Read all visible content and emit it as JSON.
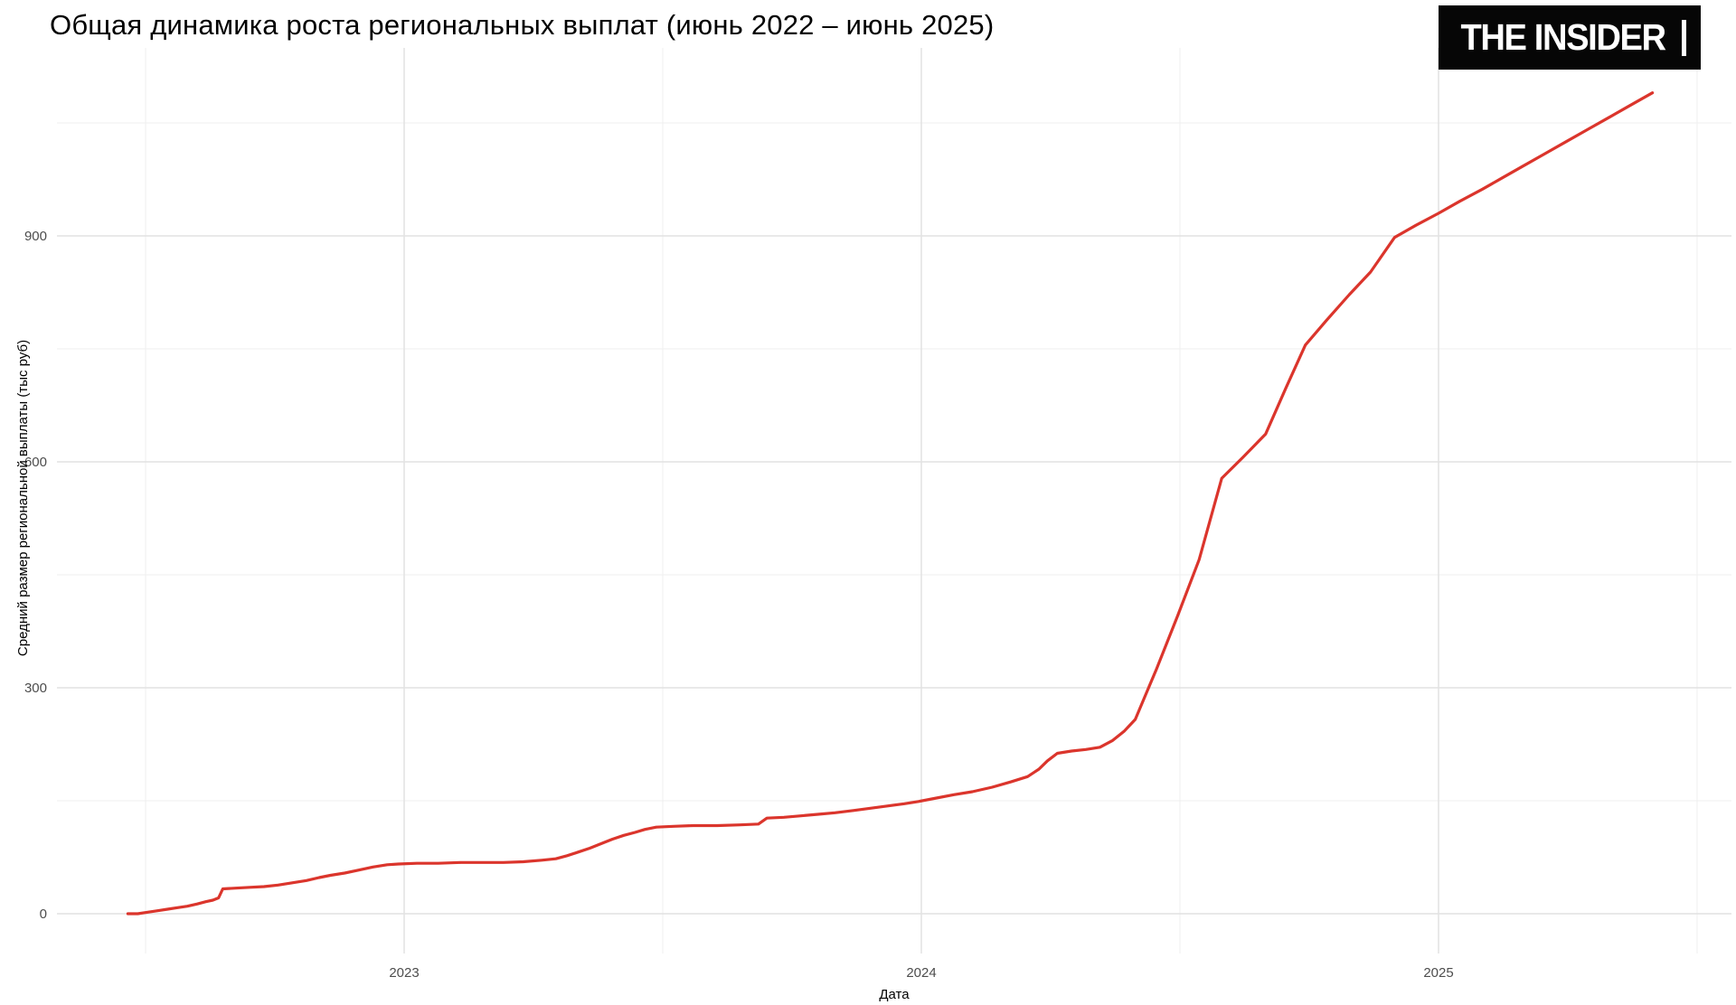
{
  "page": {
    "title": "Общая динамика роста региональных выплат (июнь 2022 – июнь 2025)"
  },
  "logo": {
    "text": "THE INSIDER",
    "bg": "#060606",
    "fg": "#ffffff"
  },
  "chart_data": {
    "type": "line",
    "title": "Общая динамика роста региональных выплат (июнь 2022 – июнь 2025)",
    "xlabel": "Дата",
    "ylabel": "Средний размер региональной выплаты (тыс руб)",
    "x_ticks": [
      {
        "label": "2023",
        "year": 2023
      },
      {
        "label": "2024",
        "year": 2024
      },
      {
        "label": "2025",
        "year": 2025
      }
    ],
    "x_minor_years": [
      2022.5,
      2023.5,
      2024.5,
      2025.5
    ],
    "y_ticks": [
      0,
      300,
      600,
      900
    ],
    "y_minor_ticks": [
      150,
      450,
      750,
      1050
    ],
    "ylim": [
      0,
      1147
    ],
    "xlim_years": [
      2022.3,
      2025.57
    ],
    "grid": "major-and-minor, light gray on white",
    "legend": "none",
    "line_color": "#db352c",
    "grid_major_color": "#e2e2e2",
    "grid_minor_color": "#efefef",
    "tick_text_color": "#4d4d4d",
    "axis_title_color": "#000000",
    "series": [
      {
        "name": "Средний размер региональной выплаты",
        "unit": "тыс руб",
        "points": [
          [
            "2022-06-20",
            0
          ],
          [
            "2022-06-27",
            0
          ],
          [
            "2022-07-04",
            2
          ],
          [
            "2022-07-11",
            4
          ],
          [
            "2022-07-18",
            6
          ],
          [
            "2022-07-25",
            8
          ],
          [
            "2022-08-01",
            10
          ],
          [
            "2022-08-08",
            13
          ],
          [
            "2022-08-14",
            16
          ],
          [
            "2022-08-19",
            18
          ],
          [
            "2022-08-23",
            21
          ],
          [
            "2022-08-26",
            33
          ],
          [
            "2022-09-04",
            34
          ],
          [
            "2022-09-14",
            35
          ],
          [
            "2022-09-24",
            36
          ],
          [
            "2022-10-04",
            38
          ],
          [
            "2022-10-14",
            41
          ],
          [
            "2022-10-24",
            44
          ],
          [
            "2022-11-02",
            48
          ],
          [
            "2022-11-10",
            51
          ],
          [
            "2022-11-20",
            54
          ],
          [
            "2022-11-30",
            58
          ],
          [
            "2022-12-10",
            62
          ],
          [
            "2022-12-20",
            65
          ],
          [
            "2022-12-28",
            66
          ],
          [
            "2023-01-10",
            67
          ],
          [
            "2023-01-25",
            67
          ],
          [
            "2023-02-10",
            68
          ],
          [
            "2023-02-25",
            68
          ],
          [
            "2023-03-12",
            68
          ],
          [
            "2023-03-26",
            69
          ],
          [
            "2023-04-08",
            71
          ],
          [
            "2023-04-18",
            73
          ],
          [
            "2023-04-26",
            77
          ],
          [
            "2023-05-04",
            82
          ],
          [
            "2023-05-12",
            87
          ],
          [
            "2023-05-20",
            93
          ],
          [
            "2023-05-28",
            99
          ],
          [
            "2023-06-05",
            104
          ],
          [
            "2023-06-13",
            108
          ],
          [
            "2023-06-20",
            112
          ],
          [
            "2023-06-28",
            115
          ],
          [
            "2023-07-10",
            116
          ],
          [
            "2023-07-24",
            117
          ],
          [
            "2023-08-10",
            117
          ],
          [
            "2023-08-26",
            118
          ],
          [
            "2023-09-08",
            119
          ],
          [
            "2023-09-14",
            127
          ],
          [
            "2023-09-26",
            128
          ],
          [
            "2023-10-08",
            130
          ],
          [
            "2023-10-20",
            132
          ],
          [
            "2023-11-01",
            134
          ],
          [
            "2023-11-14",
            137
          ],
          [
            "2023-11-26",
            140
          ],
          [
            "2023-12-08",
            143
          ],
          [
            "2023-12-20",
            146
          ],
          [
            "2023-12-30",
            149
          ],
          [
            "2024-01-10",
            153
          ],
          [
            "2024-01-24",
            158
          ],
          [
            "2024-02-06",
            162
          ],
          [
            "2024-02-20",
            168
          ],
          [
            "2024-03-05",
            175
          ],
          [
            "2024-03-17",
            182
          ],
          [
            "2024-03-25",
            192
          ],
          [
            "2024-03-31",
            203
          ],
          [
            "2024-04-07",
            213
          ],
          [
            "2024-04-17",
            216
          ],
          [
            "2024-04-27",
            218
          ],
          [
            "2024-05-07",
            221
          ],
          [
            "2024-05-16",
            230
          ],
          [
            "2024-05-24",
            242
          ],
          [
            "2024-06-01",
            258
          ],
          [
            "2024-06-16",
            325
          ],
          [
            "2024-07-01",
            396
          ],
          [
            "2024-07-16",
            470
          ],
          [
            "2024-08-01",
            578
          ],
          [
            "2024-08-16",
            606
          ],
          [
            "2024-09-01",
            637
          ],
          [
            "2024-09-15",
            697
          ],
          [
            "2024-09-29",
            755
          ],
          [
            "2024-10-14",
            788
          ],
          [
            "2024-10-30",
            822
          ],
          [
            "2024-11-14",
            852
          ],
          [
            "2024-12-01",
            898
          ],
          [
            "2024-12-16",
            914
          ],
          [
            "2025-01-01",
            930
          ],
          [
            "2025-01-16",
            946
          ],
          [
            "2025-02-01",
            962
          ],
          [
            "2025-02-15",
            977
          ],
          [
            "2025-03-01",
            992
          ],
          [
            "2025-03-16",
            1008
          ],
          [
            "2025-04-01",
            1025
          ],
          [
            "2025-04-16",
            1041
          ],
          [
            "2025-05-01",
            1057
          ],
          [
            "2025-05-16",
            1073
          ],
          [
            "2025-06-01",
            1090
          ]
        ]
      }
    ]
  }
}
